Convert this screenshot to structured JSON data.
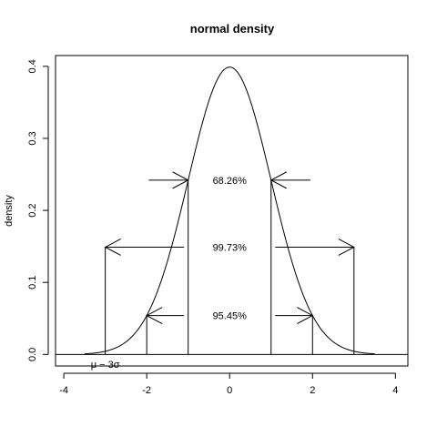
{
  "chart_data": {
    "type": "line",
    "title": "normal density",
    "xlabel": "",
    "ylabel": "density",
    "xlim": [
      -4.2,
      4.3
    ],
    "ylim": [
      -0.016,
      0.415
    ],
    "x_ticks": [
      -4,
      -2,
      0,
      2,
      4
    ],
    "y_ticks": [
      0.0,
      0.1,
      0.2,
      0.3,
      0.4
    ],
    "x_tick_labels": [
      "-4",
      "-2",
      "0",
      "2",
      "4"
    ],
    "y_tick_labels": [
      "0.0",
      "0.1",
      "0.2",
      "0.3",
      "0.4"
    ],
    "grid": false,
    "legend": "none",
    "curve": {
      "x_range": [
        -3.5,
        3.5
      ],
      "mean": 0,
      "sd": 1
    },
    "baseline_y": 0,
    "vertical_segments": [
      {
        "x": -3,
        "y0": 0,
        "y1": 0.149
      },
      {
        "x": -2,
        "y0": 0,
        "y1": 0.054
      },
      {
        "x": -1,
        "y0": 0,
        "y1": 0.242
      },
      {
        "x": 1,
        "y0": 0,
        "y1": 0.242
      },
      {
        "x": 2,
        "y0": 0,
        "y1": 0.054
      },
      {
        "x": 3,
        "y0": 0,
        "y1": 0.149
      }
    ],
    "arrows": [
      {
        "x_from": -1.95,
        "x_to": -1.0,
        "y": 0.242
      },
      {
        "x_from": 1.95,
        "x_to": 1.0,
        "y": 0.242
      },
      {
        "x_from": -1.1,
        "x_to": -3.0,
        "y": 0.149
      },
      {
        "x_from": 1.1,
        "x_to": 3.0,
        "y": 0.149
      },
      {
        "x_from": -1.1,
        "x_to": -2.0,
        "y": 0.054
      },
      {
        "x_from": 1.1,
        "x_to": 2.0,
        "y": 0.054
      }
    ],
    "annotations": [
      {
        "text": "68.26%",
        "x": 0,
        "y": 0.242
      },
      {
        "text": "99.73%",
        "x": 0,
        "y": 0.149
      },
      {
        "text": "95.45%",
        "x": 0,
        "y": 0.054
      },
      {
        "text": "μ − 3σ",
        "x": -3,
        "y": -0.016
      }
    ]
  }
}
